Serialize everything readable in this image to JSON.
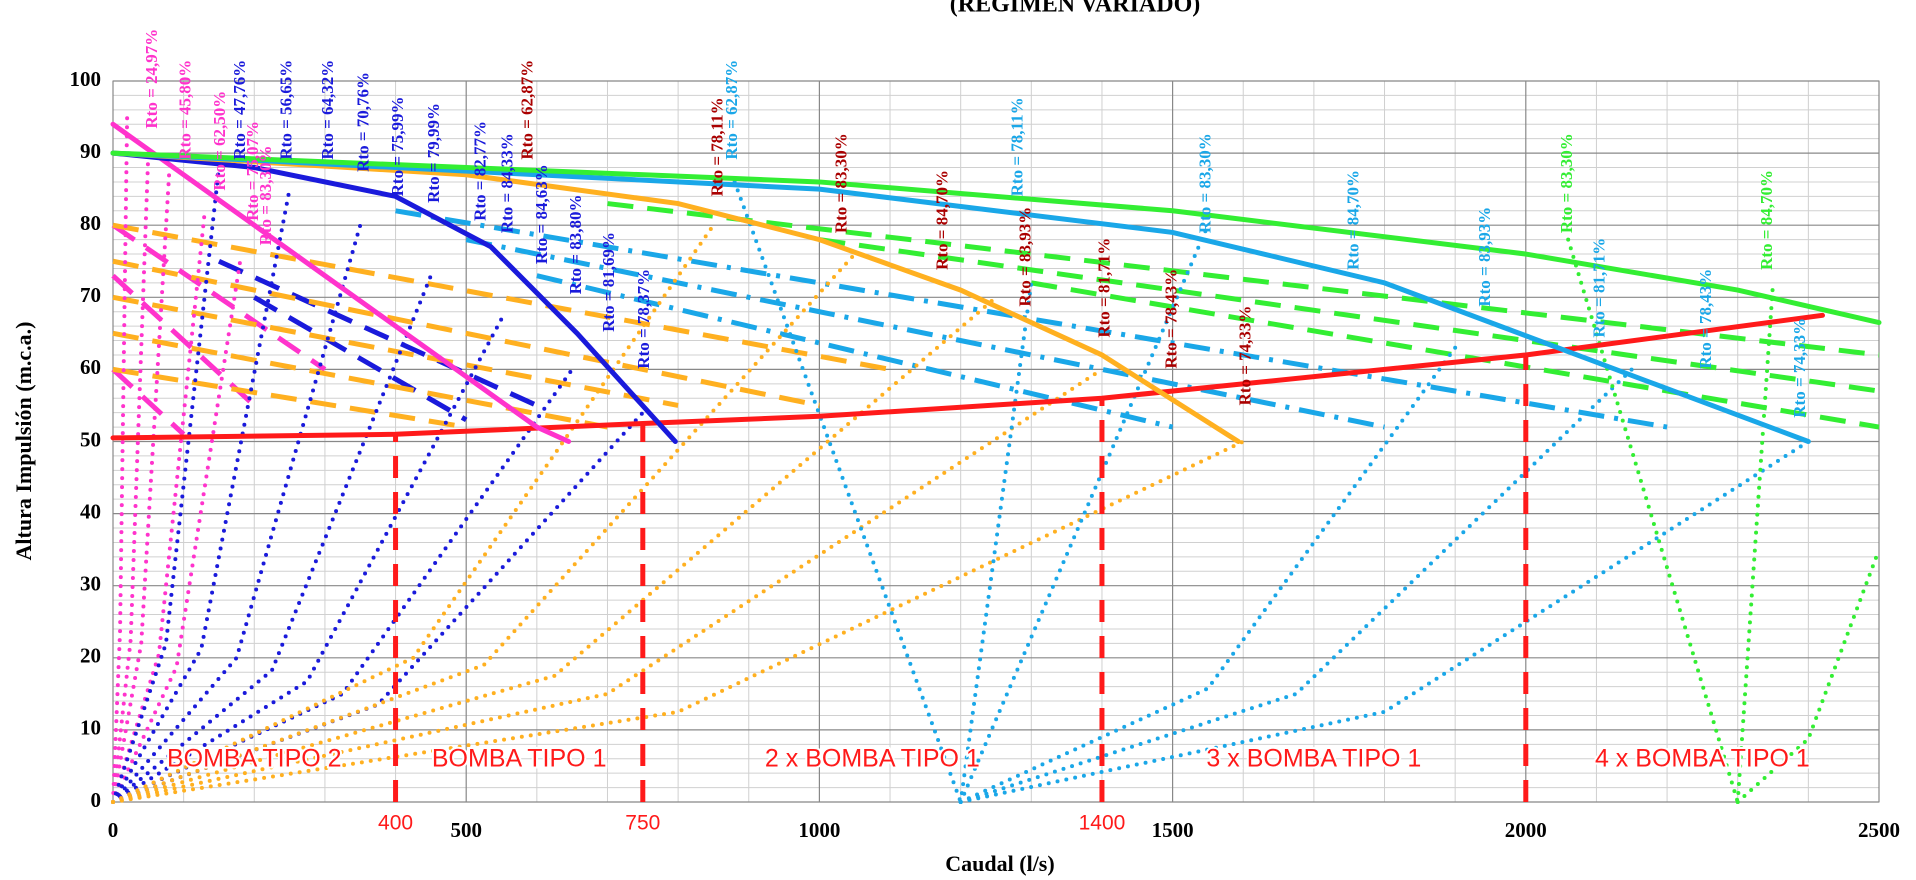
{
  "chart_data": {
    "type": "line",
    "title": "(REGIMEN VARIADO)",
    "x_label": "Caudal (l/s)",
    "y_label": "Altura Impulsión (m.c.a.)",
    "xlim": [
      0,
      2500
    ],
    "xticks": [
      0,
      500,
      1000,
      1500,
      2000,
      2500
    ],
    "ylim": [
      0,
      100
    ],
    "yticks": [
      0,
      10,
      20,
      30,
      40,
      50,
      60,
      70,
      80,
      90,
      100
    ],
    "grid": true,
    "dividers": {
      "color": "#ff1a1a",
      "x": [
        400,
        750,
        1400,
        2000
      ],
      "y": [
        51,
        52.5,
        56,
        62
      ],
      "labels": [
        "400",
        "750",
        "1400",
        null
      ]
    },
    "regions": [
      "BOMBA TIPO 2",
      "BOMBA TIPO 1",
      "2 x BOMBA TIPO 1",
      "3 x BOMBA TIPO 1",
      "4 x BOMBA TIPO 1"
    ],
    "series": [
      {
        "color": "#ff1a1a",
        "dash": "solid",
        "x": [
          0,
          400,
          750,
          1000,
          1400,
          2000,
          2420
        ],
        "values": [
          50.5,
          51,
          52.5,
          53.5,
          56,
          62,
          67.5
        ]
      },
      {
        "color": "#ff33cc",
        "dash": "solid",
        "x": [
          0,
          100,
          200,
          300,
          400,
          500,
          600,
          645
        ],
        "values": [
          94,
          87,
          80,
          73,
          66,
          59,
          52,
          50
        ]
      },
      {
        "color": "#1a1adb",
        "dash": "solid",
        "x": [
          0,
          200,
          400,
          535,
          657,
          796
        ],
        "values": [
          90,
          88,
          84,
          77,
          65,
          50
        ]
      },
      {
        "color": "#ffb020",
        "dash": "solid",
        "x": [
          0,
          500,
          800,
          1000,
          1200,
          1400,
          1593
        ],
        "values": [
          90,
          87,
          83,
          78,
          71,
          62,
          50
        ]
      },
      {
        "color": "#1aa7e8",
        "dash": "solid",
        "x": [
          0,
          1000,
          1500,
          1800,
          2100,
          2400
        ],
        "values": [
          90,
          85,
          79,
          72,
          61,
          50
        ]
      },
      {
        "color": "#33ee33",
        "dash": "solid",
        "x": [
          0,
          1000,
          1500,
          2000,
          2300,
          2500
        ],
        "values": [
          90,
          86,
          82,
          76,
          71,
          66.5
        ]
      },
      {
        "color": "#ff33cc",
        "dash": "dashed",
        "x": [
          0,
          300
        ],
        "values": [
          80,
          60
        ]
      },
      {
        "color": "#ff33cc",
        "dash": "dashed",
        "x": [
          0,
          200
        ],
        "values": [
          73,
          55
        ]
      },
      {
        "color": "#ff33cc",
        "dash": "dashed",
        "x": [
          0,
          100
        ],
        "values": [
          60,
          51
        ]
      },
      {
        "color": "#1a1adb",
        "dash": "dashed",
        "x": [
          150,
          600
        ],
        "values": [
          75,
          55
        ]
      },
      {
        "color": "#1a1adb",
        "dash": "dashed",
        "x": [
          200,
          500
        ],
        "values": [
          70,
          53
        ]
      },
      {
        "color": "#ffb020",
        "dash": "dashed",
        "x": [
          0,
          1100
        ],
        "values": [
          80,
          60
        ]
      },
      {
        "color": "#ffb020",
        "dash": "dashed",
        "x": [
          0,
          1000
        ],
        "values": [
          75,
          55
        ]
      },
      {
        "color": "#ffb020",
        "dash": "dashed",
        "x": [
          0,
          800
        ],
        "values": [
          70,
          55
        ]
      },
      {
        "color": "#ffb020",
        "dash": "dashed",
        "x": [
          0,
          700
        ],
        "values": [
          65,
          52
        ]
      },
      {
        "color": "#ffb020",
        "dash": "dashed",
        "x": [
          0,
          500
        ],
        "values": [
          60,
          52
        ]
      },
      {
        "color": "#1aa7e8",
        "dash": "dashdot",
        "x": [
          400,
          2200
        ],
        "values": [
          82,
          52
        ]
      },
      {
        "color": "#1aa7e8",
        "dash": "dashdot",
        "x": [
          500,
          1800
        ],
        "values": [
          78,
          52
        ]
      },
      {
        "color": "#1aa7e8",
        "dash": "dashdot",
        "x": [
          600,
          1500
        ],
        "values": [
          73,
          52
        ]
      },
      {
        "color": "#33ee33",
        "dash": "dashed",
        "x": [
          700,
          2500
        ],
        "values": [
          83,
          62
        ]
      },
      {
        "color": "#33ee33",
        "dash": "dashed",
        "x": [
          1000,
          2500
        ],
        "values": [
          78,
          57
        ]
      },
      {
        "color": "#33ee33",
        "dash": "dashed",
        "x": [
          1300,
          2500
        ],
        "values": [
          72,
          52
        ]
      },
      {
        "color": "#ff33cc",
        "dash": "dotted",
        "x": [
          0,
          10,
          20
        ],
        "values": [
          0,
          23.75,
          95
        ]
      },
      {
        "color": "#ff33cc",
        "dash": "dotted",
        "x": [
          0,
          25,
          50
        ],
        "values": [
          0,
          22.5,
          90
        ]
      },
      {
        "color": "#ff33cc",
        "dash": "dotted",
        "x": [
          0,
          40,
          80
        ],
        "values": [
          0,
          22,
          88
        ]
      },
      {
        "color": "#ff33cc",
        "dash": "dotted",
        "x": [
          0,
          65,
          130
        ],
        "values": [
          0,
          20.5,
          82
        ]
      },
      {
        "color": "#ff33cc",
        "dash": "dotted",
        "x": [
          0,
          90,
          180
        ],
        "values": [
          0,
          18.75,
          75
        ]
      },
      {
        "color": "#1a1adb",
        "dash": "dotted",
        "x": [
          0,
          75,
          150
        ],
        "values": [
          0,
          22,
          88
        ]
      },
      {
        "color": "#1a1adb",
        "dash": "dotted",
        "x": [
          0,
          125,
          250
        ],
        "values": [
          0,
          21.25,
          85
        ]
      },
      {
        "color": "#1a1adb",
        "dash": "dotted",
        "x": [
          0,
          175,
          350
        ],
        "values": [
          0,
          20,
          80
        ]
      },
      {
        "color": "#1a1adb",
        "dash": "dotted",
        "x": [
          0,
          225,
          450
        ],
        "values": [
          0,
          18.25,
          73
        ]
      },
      {
        "color": "#1a1adb",
        "dash": "dotted",
        "x": [
          0,
          275,
          550
        ],
        "values": [
          0,
          16.75,
          67
        ]
      },
      {
        "color": "#1a1adb",
        "dash": "dotted",
        "x": [
          0,
          325,
          650
        ],
        "values": [
          0,
          15,
          60
        ]
      },
      {
        "color": "#1a1adb",
        "dash": "dotted",
        "x": [
          0,
          375,
          750
        ],
        "values": [
          0,
          13.5,
          54
        ]
      },
      {
        "color": "#ffb020",
        "dash": "dotted",
        "x": [
          0,
          425,
          850
        ],
        "values": [
          0,
          20,
          80
        ]
      },
      {
        "color": "#ffb020",
        "dash": "dotted",
        "x": [
          0,
          525,
          1050
        ],
        "values": [
          0,
          19,
          76
        ]
      },
      {
        "color": "#ffb020",
        "dash": "dotted",
        "x": [
          0,
          625,
          1250
        ],
        "values": [
          0,
          17.5,
          70
        ]
      },
      {
        "color": "#ffb020",
        "dash": "dotted",
        "x": [
          0,
          700,
          1400
        ],
        "values": [
          0,
          15,
          60
        ]
      },
      {
        "color": "#ffb020",
        "dash": "dotted",
        "x": [
          0,
          800,
          1600
        ],
        "values": [
          0,
          12.5,
          50
        ]
      },
      {
        "color": "#1aa7e8",
        "dash": "dotted",
        "x": [
          880,
          1200
        ],
        "values": [
          86,
          0
        ]
      },
      {
        "color": "#1aa7e8",
        "dash": "dotted",
        "x": [
          1200,
          1300
        ],
        "values": [
          0,
          72
        ]
      },
      {
        "color": "#1aa7e8",
        "dash": "dotted",
        "x": [
          1200,
          1550
        ],
        "values": [
          0,
          80
        ]
      },
      {
        "color": "#1aa7e8",
        "dash": "dotted",
        "x": [
          1200,
          1550,
          1900
        ],
        "values": [
          0,
          15.75,
          63
        ]
      },
      {
        "color": "#1aa7e8",
        "dash": "dotted",
        "x": [
          1200,
          1675,
          2150
        ],
        "values": [
          0,
          15,
          60
        ]
      },
      {
        "color": "#1aa7e8",
        "dash": "dotted",
        "x": [
          1200,
          1800,
          2400
        ],
        "values": [
          0,
          12.5,
          50
        ]
      },
      {
        "color": "#33ee33",
        "dash": "dotted",
        "x": [
          2060,
          2300
        ],
        "values": [
          78,
          0
        ]
      },
      {
        "color": "#33ee33",
        "dash": "dotted",
        "x": [
          2300,
          2350
        ],
        "values": [
          0,
          72
        ]
      },
      {
        "color": "#33ee33",
        "dash": "dotted",
        "x": [
          2300,
          2400,
          2500
        ],
        "values": [
          0,
          8.75,
          35
        ]
      }
    ],
    "annotations": [
      {
        "text": "Rto = 24,97%",
        "x": 57,
        "y": 93.4,
        "color": "#ff33cc"
      },
      {
        "text": "Rto = 45,80%",
        "x": 104,
        "y": 89.1,
        "color": "#ff33cc"
      },
      {
        "text": "Rto = 62,50%",
        "x": 153,
        "y": 84.8,
        "color": "#ff33cc"
      },
      {
        "text": "Rto = 75,07%",
        "x": 200,
        "y": 80.6,
        "color": "#ff33cc"
      },
      {
        "text": "Rto = 83,30%",
        "x": 218,
        "y": 77.2,
        "color": "#ff33cc"
      },
      {
        "text": "Rto = 47,76%",
        "x": 181,
        "y": 89.1,
        "color": "#1a1adb"
      },
      {
        "text": "Rto = 56,65%",
        "x": 247,
        "y": 89.1,
        "color": "#1a1adb"
      },
      {
        "text": "Rto = 64,32%",
        "x": 306,
        "y": 89.1,
        "color": "#1a1adb"
      },
      {
        "text": "Rto = 70,76%",
        "x": 356,
        "y": 87.4,
        "color": "#1a1adb"
      },
      {
        "text": "Rto = 75,99%",
        "x": 405,
        "y": 84.0,
        "color": "#1a1adb"
      },
      {
        "text": "Rto = 79,99%",
        "x": 456,
        "y": 83.1,
        "color": "#1a1adb"
      },
      {
        "text": "Rto = 82,77%",
        "x": 522,
        "y": 80.6,
        "color": "#1a1adb"
      },
      {
        "text": "Rto = 84,33%",
        "x": 560,
        "y": 78.9,
        "color": "#1a1adb"
      },
      {
        "text": "Rto = 84,63%",
        "x": 609,
        "y": 74.6,
        "color": "#1a1adb"
      },
      {
        "text": "Rto = 83,80%",
        "x": 657,
        "y": 70.4,
        "color": "#1a1adb"
      },
      {
        "text": "Rto = 81,69%",
        "x": 704,
        "y": 65.2,
        "color": "#1a1adb"
      },
      {
        "text": "Rto = 78,37%",
        "x": 753,
        "y": 60.1,
        "color": "#1a1adb"
      },
      {
        "text": "Rto = 62,87%",
        "x": 588,
        "y": 89.1,
        "color": "#aa0000"
      },
      {
        "text": "Rto = 78,11%",
        "x": 857,
        "y": 84.0,
        "color": "#aa0000"
      },
      {
        "text": "Rto = 83,30%",
        "x": 1033,
        "y": 78.9,
        "color": "#aa0000"
      },
      {
        "text": "Rto = 84,70%",
        "x": 1176,
        "y": 73.8,
        "color": "#aa0000"
      },
      {
        "text": "Rto = 83,93%",
        "x": 1293,
        "y": 68.7,
        "color": "#aa0000"
      },
      {
        "text": "Rto = 81,71%",
        "x": 1405,
        "y": 64.4,
        "color": "#aa0000"
      },
      {
        "text": "Rto = 78,43%",
        "x": 1500,
        "y": 60.1,
        "color": "#aa0000"
      },
      {
        "text": "Rto = 74,33%",
        "x": 1605,
        "y": 55.0,
        "color": "#aa0000"
      },
      {
        "text": "Rto = 62,87%",
        "x": 878,
        "y": 89.1,
        "color": "#1aa7e8"
      },
      {
        "text": "Rto = 78,11%",
        "x": 1282,
        "y": 84.0,
        "color": "#1aa7e8"
      },
      {
        "text": "Rto = 83,30%",
        "x": 1548,
        "y": 78.9,
        "color": "#1aa7e8"
      },
      {
        "text": "Rto = 84,70%",
        "x": 1758,
        "y": 73.8,
        "color": "#1aa7e8"
      },
      {
        "text": "Rto = 83,93%",
        "x": 1944,
        "y": 68.7,
        "color": "#1aa7e8"
      },
      {
        "text": "Rto = 81,71%",
        "x": 2106,
        "y": 64.4,
        "color": "#1aa7e8"
      },
      {
        "text": "Rto = 78,43%",
        "x": 2257,
        "y": 60.1,
        "color": "#1aa7e8"
      },
      {
        "text": "Rto = 74,33%",
        "x": 2390,
        "y": 53.3,
        "color": "#1aa7e8"
      },
      {
        "text": "Rto = 83,30%",
        "x": 2060,
        "y": 78.9,
        "color": "#33ee33"
      },
      {
        "text": "Rto = 84,70%",
        "x": 2343,
        "y": 73.8,
        "color": "#33ee33"
      }
    ]
  }
}
